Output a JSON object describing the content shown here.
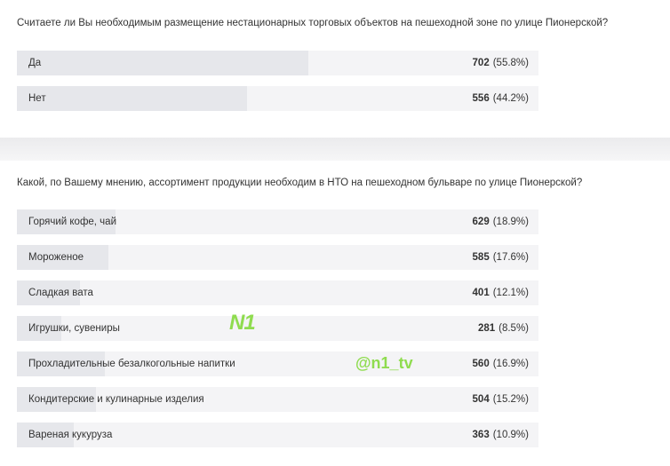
{
  "chart_data": [
    {
      "type": "bar",
      "orientation": "horizontal",
      "title": "Считаете ли Вы необходимым размещение нестационарных торговых объектов на пешеходной зоне по улице Пионерской?",
      "categories": [
        "Да",
        "Нет"
      ],
      "values": [
        702,
        556
      ],
      "share_labels": [
        "(55.8%)",
        "(44.2%)"
      ],
      "xlim": [
        0,
        1258
      ],
      "color": "#e6e7eb"
    },
    {
      "type": "bar",
      "orientation": "horizontal",
      "title": "Какой, по Вашему мнению, ассортимент продукции необходим в НТО на пешеходном бульваре по улице Пионерской?",
      "categories": [
        "Горячий кофе, чай",
        "Мороженое",
        "Сладкая вата",
        "Игрушки, сувениры",
        "Прохладительные безалкогольные напитки",
        "Кондитерские и кулинарные изделия",
        "Вареная кукуруза"
      ],
      "values": [
        629,
        585,
        401,
        281,
        560,
        504,
        363
      ],
      "share_labels": [
        "(18.9%)",
        "(17.6%)",
        "(12.1%)",
        "(8.5%)",
        "(16.9%)",
        "(15.2%)",
        "(10.9%)"
      ],
      "xlim": [
        0,
        3323
      ],
      "color": "#e6e7eb"
    }
  ],
  "watermarks": [
    "N1",
    "@n1_tv"
  ]
}
